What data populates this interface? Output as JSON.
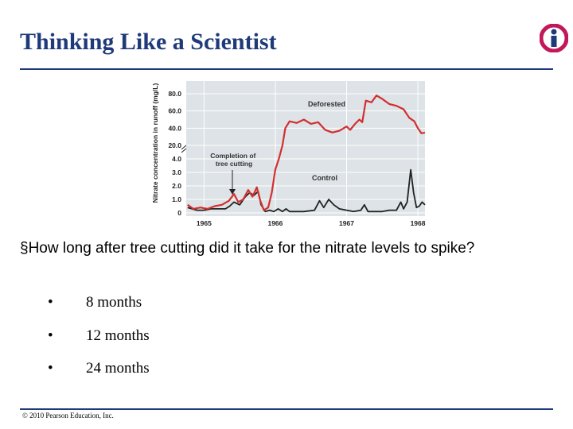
{
  "slide": {
    "title": "Thinking Like a Scientist",
    "question": "§How long after tree cutting did it take for the nitrate levels to spike?",
    "options": [
      "8 months",
      "12 months",
      "24 months"
    ],
    "bullet": "•",
    "copyright": "© 2010 Pearson Education, Inc.",
    "title_color": "#1f3a7a",
    "logo_icon": "info-person-icon",
    "logo_color": "#c2185b"
  },
  "chart_data": {
    "type": "line",
    "ylabel": "Nitrate concentration in runoff (mg/L)",
    "upper_ticks": [
      "80.0",
      "60.0",
      "40.0",
      "20.0"
    ],
    "lower_ticks": [
      "4.0",
      "3.0",
      "2.0",
      "1.0",
      "0"
    ],
    "x_ticks": [
      1965,
      1966,
      1967,
      1968
    ],
    "xlim": [
      1964.75,
      1968.1
    ],
    "annotations": {
      "deforested": "Deforested",
      "control": "Control",
      "cut": "Completion of tree cutting"
    },
    "cut_time": 1965.9,
    "series": [
      {
        "name": "Deforested",
        "color": "#d32f2f",
        "points": [
          [
            1964.77,
            0.6
          ],
          [
            1964.85,
            0.3
          ],
          [
            1964.95,
            0.4
          ],
          [
            1965.05,
            0.3
          ],
          [
            1965.15,
            0.5
          ],
          [
            1965.25,
            0.6
          ],
          [
            1965.35,
            0.9
          ],
          [
            1965.42,
            1.4
          ],
          [
            1965.48,
            0.8
          ],
          [
            1965.55,
            1.0
          ],
          [
            1965.62,
            1.7
          ],
          [
            1965.68,
            1.2
          ],
          [
            1965.74,
            1.9
          ],
          [
            1965.79,
            0.9
          ],
          [
            1965.84,
            0.2
          ],
          [
            1965.9,
            0.4
          ],
          [
            1965.95,
            1.5
          ],
          [
            1966.0,
            3.2
          ],
          [
            1966.05,
            4.1
          ],
          [
            1966.1,
            20
          ],
          [
            1966.14,
            40
          ],
          [
            1966.2,
            48
          ],
          [
            1966.3,
            46
          ],
          [
            1966.4,
            50
          ],
          [
            1966.5,
            45
          ],
          [
            1966.6,
            47
          ],
          [
            1966.7,
            38
          ],
          [
            1966.8,
            35
          ],
          [
            1966.9,
            37
          ],
          [
            1967.0,
            42
          ],
          [
            1967.05,
            38
          ],
          [
            1967.12,
            45
          ],
          [
            1967.18,
            50
          ],
          [
            1967.22,
            47
          ],
          [
            1967.27,
            72
          ],
          [
            1967.35,
            70
          ],
          [
            1967.42,
            78
          ],
          [
            1967.5,
            74
          ],
          [
            1967.6,
            68
          ],
          [
            1967.7,
            66
          ],
          [
            1967.8,
            62
          ],
          [
            1967.88,
            52
          ],
          [
            1967.95,
            48
          ],
          [
            1968.0,
            40
          ],
          [
            1968.05,
            34
          ],
          [
            1968.1,
            35
          ]
        ]
      },
      {
        "name": "Control",
        "color": "#222222",
        "points": [
          [
            1964.77,
            0.4
          ],
          [
            1964.9,
            0.2
          ],
          [
            1965.0,
            0.2
          ],
          [
            1965.1,
            0.3
          ],
          [
            1965.2,
            0.3
          ],
          [
            1965.3,
            0.3
          ],
          [
            1965.36,
            0.5
          ],
          [
            1965.42,
            0.8
          ],
          [
            1965.5,
            0.6
          ],
          [
            1965.58,
            1.2
          ],
          [
            1965.64,
            1.5
          ],
          [
            1965.7,
            1.3
          ],
          [
            1965.76,
            1.6
          ],
          [
            1965.8,
            0.6
          ],
          [
            1965.86,
            0.1
          ],
          [
            1965.92,
            0.2
          ],
          [
            1965.98,
            0.1
          ],
          [
            1966.04,
            0.3
          ],
          [
            1966.1,
            0.1
          ],
          [
            1966.15,
            0.3
          ],
          [
            1966.2,
            0.1
          ],
          [
            1966.25,
            0.1
          ],
          [
            1966.4,
            0.1
          ],
          [
            1966.55,
            0.2
          ],
          [
            1966.62,
            0.9
          ],
          [
            1966.68,
            0.4
          ],
          [
            1966.75,
            1.0
          ],
          [
            1966.82,
            0.6
          ],
          [
            1966.9,
            0.3
          ],
          [
            1967.0,
            0.2
          ],
          [
            1967.1,
            0.1
          ],
          [
            1967.2,
            0.2
          ],
          [
            1967.25,
            0.6
          ],
          [
            1967.3,
            0.1
          ],
          [
            1967.5,
            0.1
          ],
          [
            1967.6,
            0.2
          ],
          [
            1967.7,
            0.2
          ],
          [
            1967.76,
            0.8
          ],
          [
            1967.8,
            0.3
          ],
          [
            1967.85,
            0.8
          ],
          [
            1967.9,
            3.2
          ],
          [
            1967.94,
            1.5
          ],
          [
            1967.98,
            0.4
          ],
          [
            1968.02,
            0.5
          ],
          [
            1968.06,
            0.8
          ],
          [
            1968.1,
            0.6
          ]
        ]
      }
    ]
  }
}
